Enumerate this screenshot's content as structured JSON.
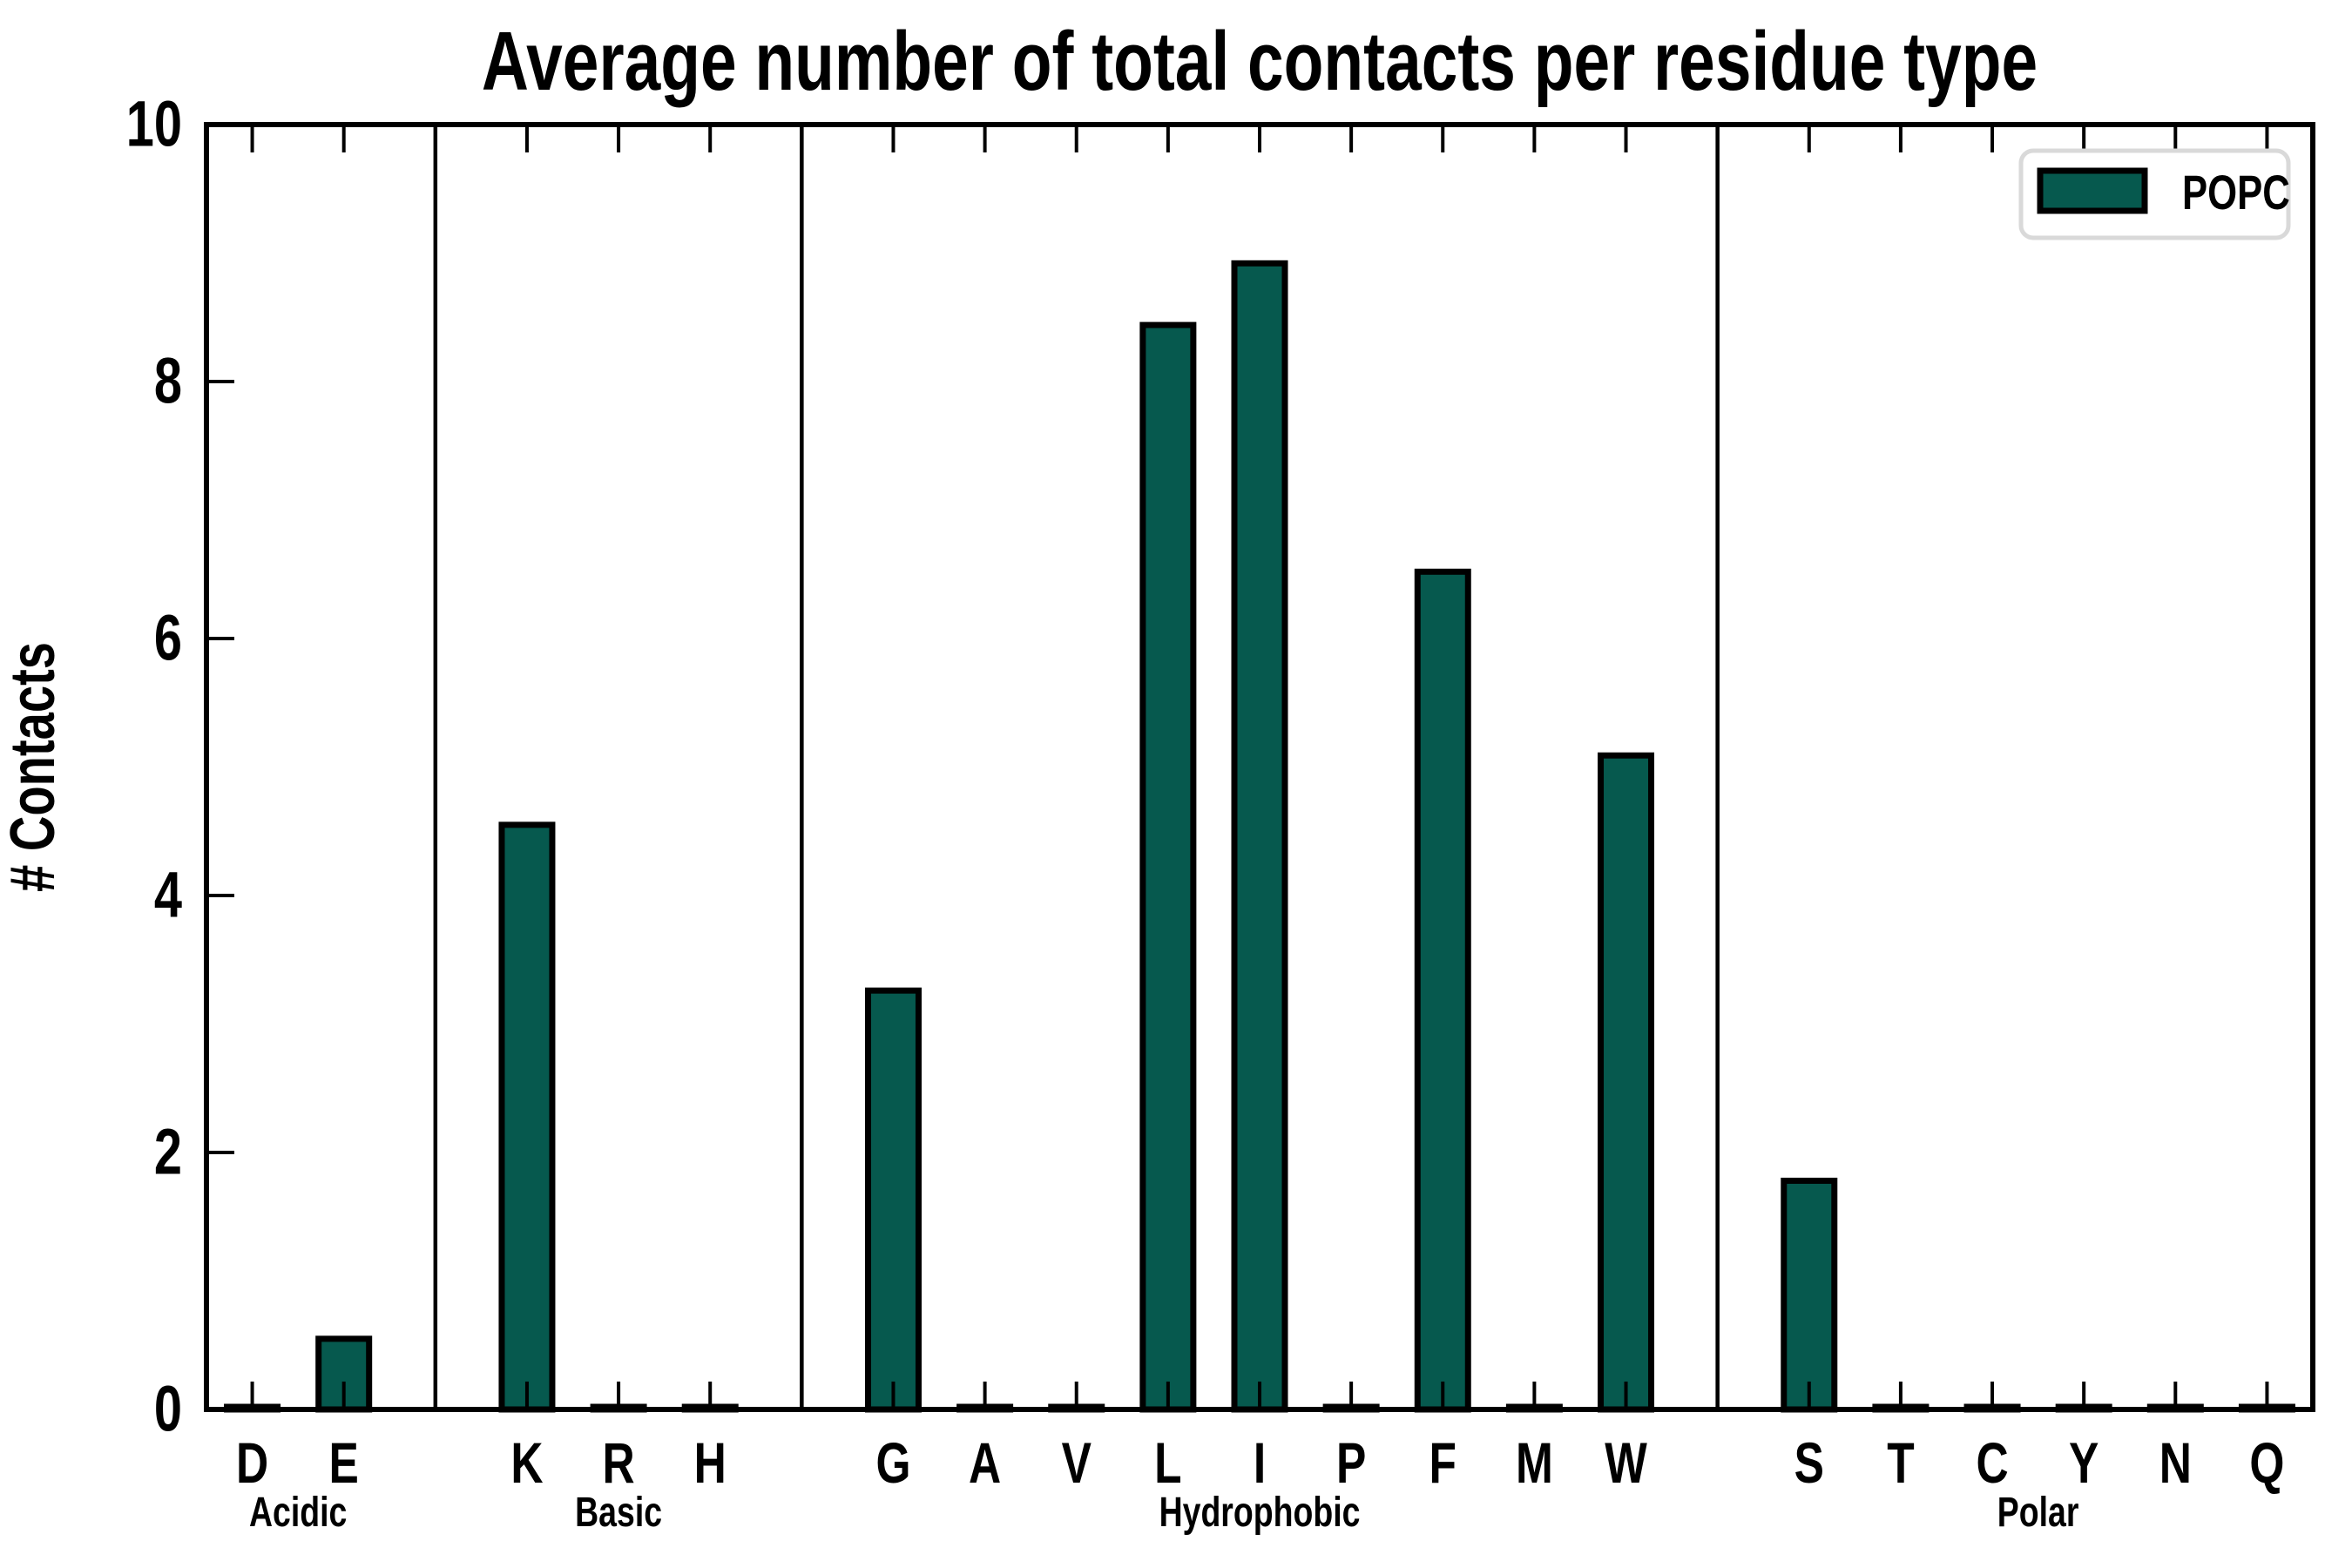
{
  "chart_data": {
    "type": "bar",
    "title": "Average number of total contacts per residue type",
    "xlabel": "",
    "ylabel": "# Contacts",
    "ylim": [
      0,
      10
    ],
    "yticks": [
      0,
      2,
      4,
      6,
      8,
      10
    ],
    "grid": false,
    "legend": {
      "position": "upper right",
      "entries": [
        {
          "label": "POPC",
          "color": "#06594e"
        }
      ]
    },
    "groups": [
      {
        "name": "Acidic",
        "categories": [
          "D",
          "E"
        ],
        "values": [
          0.02,
          0.55
        ]
      },
      {
        "name": "Basic",
        "categories": [
          "K",
          "R",
          "H"
        ],
        "values": [
          4.55,
          0.02,
          0.02
        ]
      },
      {
        "name": "Hydrophobic",
        "categories": [
          "G",
          "A",
          "V",
          "L",
          "I",
          "P",
          "F",
          "M",
          "W"
        ],
        "values": [
          3.26,
          0.02,
          0.02,
          8.44,
          8.92,
          0.02,
          6.52,
          0.02,
          5.09
        ]
      },
      {
        "name": "Polar",
        "categories": [
          "S",
          "T",
          "C",
          "Y",
          "N",
          "Q"
        ],
        "values": [
          1.78,
          0.02,
          0.02,
          0.02,
          0.02,
          0.02
        ]
      }
    ],
    "colors": {
      "bar_fill": "#06594e",
      "bar_edge": "#000000",
      "axis": "#000000",
      "separator": "#000000",
      "legend_border": "#d9d9d9",
      "background": "#ffffff"
    }
  }
}
